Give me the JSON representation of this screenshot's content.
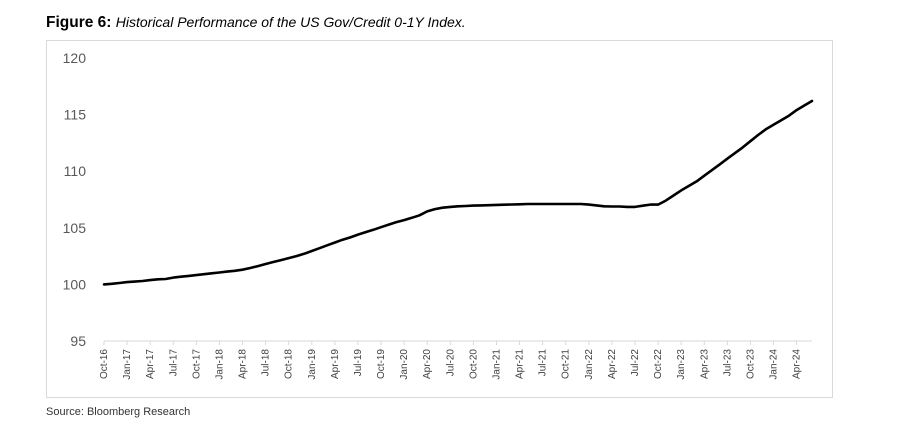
{
  "figure": {
    "label": "Figure 6:",
    "caption": "Historical Performance of the US Gov/Credit 0-1Y Index."
  },
  "source": "Source: Bloomberg Research",
  "colors": {
    "line": "#000000",
    "axis": "#d9d9d9",
    "tick_text": "#595959"
  },
  "chart_data": {
    "type": "line",
    "title": "",
    "xlabel": "",
    "ylabel": "",
    "ylim": [
      95,
      120
    ],
    "yticks": [
      95,
      100,
      105,
      110,
      115,
      120
    ],
    "grid": false,
    "legend": "none",
    "xtick_labels": [
      "Oct-16",
      "Jan-17",
      "Apr-17",
      "Jul-17",
      "Oct-17",
      "Jan-18",
      "Apr-18",
      "Jul-18",
      "Oct-18",
      "Jan-19",
      "Apr-19",
      "Jul-19",
      "Oct-19",
      "Jan-20",
      "Apr-20",
      "Jul-20",
      "Oct-20",
      "Jan-21",
      "Apr-21",
      "Jul-21",
      "Oct-21",
      "Jan-22",
      "Apr-22",
      "Jul-22",
      "Oct-22",
      "Jan-23",
      "Apr-23",
      "Jul-23",
      "Oct-23",
      "Jan-24",
      "Apr-24"
    ],
    "x": [
      "Oct-16",
      "Nov-16",
      "Dec-16",
      "Jan-17",
      "Feb-17",
      "Mar-17",
      "Apr-17",
      "May-17",
      "Jun-17",
      "Jul-17",
      "Aug-17",
      "Sep-17",
      "Oct-17",
      "Nov-17",
      "Dec-17",
      "Jan-18",
      "Feb-18",
      "Mar-18",
      "Apr-18",
      "May-18",
      "Jun-18",
      "Jul-18",
      "Aug-18",
      "Sep-18",
      "Oct-18",
      "Nov-18",
      "Dec-18",
      "Jan-19",
      "Feb-19",
      "Mar-19",
      "Apr-19",
      "May-19",
      "Jun-19",
      "Jul-19",
      "Aug-19",
      "Sep-19",
      "Oct-19",
      "Nov-19",
      "Dec-19",
      "Jan-20",
      "Feb-20",
      "Mar-20",
      "Apr-20",
      "May-20",
      "Jun-20",
      "Jul-20",
      "Aug-20",
      "Sep-20",
      "Oct-20",
      "Nov-20",
      "Dec-20",
      "Jan-21",
      "Feb-21",
      "Mar-21",
      "Apr-21",
      "May-21",
      "Jun-21",
      "Jul-21",
      "Aug-21",
      "Sep-21",
      "Oct-21",
      "Nov-21",
      "Dec-21",
      "Jan-22",
      "Feb-22",
      "Mar-22",
      "Apr-22",
      "May-22",
      "Jun-22",
      "Jul-22",
      "Aug-22",
      "Sep-22",
      "Oct-22",
      "Nov-22",
      "Dec-22",
      "Jan-23",
      "Feb-23",
      "Mar-23",
      "Apr-23",
      "May-23",
      "Jun-23",
      "Jul-23",
      "Aug-23",
      "Sep-23",
      "Oct-23",
      "Nov-23",
      "Dec-23",
      "Jan-24",
      "Feb-24",
      "Mar-24",
      "Apr-24",
      "May-24",
      "Jun-24"
    ],
    "series": [
      {
        "values": [
          100.0,
          100.05,
          100.12,
          100.2,
          100.25,
          100.3,
          100.38,
          100.45,
          100.48,
          100.6,
          100.68,
          100.75,
          100.82,
          100.9,
          100.98,
          101.05,
          101.13,
          101.2,
          101.3,
          101.45,
          101.62,
          101.8,
          101.98,
          102.15,
          102.32,
          102.5,
          102.7,
          102.95,
          103.2,
          103.45,
          103.7,
          103.95,
          104.15,
          104.4,
          104.62,
          104.82,
          105.05,
          105.28,
          105.5,
          105.68,
          105.88,
          106.1,
          106.45,
          106.65,
          106.78,
          106.85,
          106.9,
          106.93,
          106.96,
          106.98,
          107.0,
          107.02,
          107.04,
          107.06,
          107.08,
          107.1,
          107.1,
          107.1,
          107.1,
          107.1,
          107.1,
          107.1,
          107.1,
          107.05,
          106.98,
          106.9,
          106.88,
          106.88,
          106.85,
          106.85,
          106.95,
          107.05,
          107.05,
          107.4,
          107.85,
          108.3,
          108.7,
          109.1,
          109.6,
          110.1,
          110.6,
          111.1,
          111.6,
          112.1,
          112.65,
          113.2,
          113.7,
          114.1,
          114.5,
          114.9,
          115.4,
          115.8,
          116.2
        ]
      }
    ]
  }
}
